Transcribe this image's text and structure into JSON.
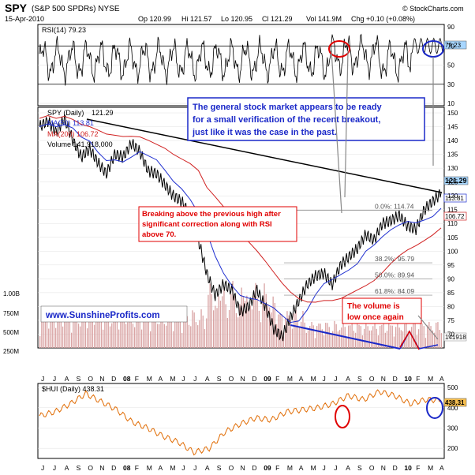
{
  "header": {
    "symbol": "SPY",
    "name": "(S&P 500 SPDRs) NYSE",
    "date": "15-Apr-2010",
    "open": "Op 120.99",
    "high": "Hi 121.57",
    "low": "Lo 120.95",
    "close": "Cl 121.29",
    "volume": "Vol 141.9M",
    "change": "Chg +0.10 (+0.08%)",
    "copyright": "© StockCharts.com"
  },
  "annotations": {
    "note1": [
      "The general stock market appears to be ready",
      "for a small verification of the recent breakout,",
      "just like it was the case in the past."
    ],
    "note2": [
      "Breaking above the previous high after",
      "significant correction along with RSI",
      "above 70."
    ],
    "note3": [
      "The volume is",
      "low once again"
    ],
    "website": "www.SunshineProfits.com"
  },
  "colors": {
    "price": "#000000",
    "ma50": "#1f2fd0",
    "ma200": "#d02020",
    "volume": "#d9a3a3",
    "hui": "#e06a00",
    "rsi": "#000000",
    "annotation_blue": "#1a28c8",
    "annotation_red": "#e00000",
    "grid": "#d8d8d8",
    "label_box": "#a7d6ff"
  },
  "chart_data": [
    {
      "type": "line",
      "title": "RSI(14) 79.23",
      "series": [
        {
          "name": "RSI(14)",
          "last": 79.23
        }
      ],
      "yticks": [
        10,
        30,
        50,
        70,
        90
      ],
      "ylim": [
        10,
        90
      ],
      "overbought": 70,
      "oversold": 30,
      "last_label": "79.23"
    },
    {
      "type": "line",
      "title": "SPY (Daily) 121.29",
      "series": [
        {
          "name": "SPY (Daily)",
          "last": 121.29,
          "values": [
            145,
            147,
            143,
            148,
            140,
            134,
            137,
            132,
            128,
            135,
            134,
            139,
            136,
            129,
            128,
            124,
            120,
            118,
            113,
            104,
            92,
            84,
            88,
            86,
            78,
            80,
            86,
            80,
            72,
            69,
            76,
            82,
            88,
            91,
            92,
            88,
            95,
            98,
            101,
            106,
            104,
            110,
            111,
            113,
            109,
            108,
            115,
            118,
            121
          ]
        },
        {
          "name": "MA(50)",
          "last": 113.81
        },
        {
          "name": "MA(200)",
          "last": 106.72
        },
        {
          "name": "Volume",
          "last": "141,918,000"
        }
      ],
      "yticks": [
        70,
        75,
        80,
        85,
        90,
        95,
        100,
        105,
        110,
        115,
        120,
        125,
        130,
        135,
        140,
        145,
        150
      ],
      "ylim": [
        65,
        152
      ],
      "volume_ticks": [
        "1.00B",
        "750M",
        "500M",
        "250M"
      ],
      "fibonacci": [
        {
          "label": "0.0%: 114.74",
          "value": 114.74
        },
        {
          "label": "38.2%: 95.79",
          "value": 95.79
        },
        {
          "label": "50.0%: 89.94",
          "value": 89.94
        },
        {
          "label": "61.8%: 84.09",
          "value": 84.09
        }
      ],
      "last_labels": {
        "price": "121.29",
        "ma50": "113.81",
        "ma200": "106.72",
        "volume": "141918"
      }
    },
    {
      "type": "line",
      "title": "$HUI (Daily) 438.31",
      "series": [
        {
          "name": "$HUI (Daily)",
          "last": 438.31,
          "values": [
            360,
            380,
            420,
            470,
            430,
            390,
            330,
            300,
            260,
            230,
            180,
            200,
            280,
            320,
            350,
            340,
            380,
            390,
            400,
            420,
            460,
            440,
            480,
            460,
            420,
            440,
            438
          ]
        }
      ],
      "yticks": [
        200,
        300,
        400,
        500
      ],
      "ylim": [
        150,
        520
      ],
      "last_label": "438.31"
    }
  ],
  "x_axis": {
    "labels": [
      "J",
      "J",
      "A",
      "S",
      "O",
      "N",
      "D",
      "08",
      "F",
      "M",
      "A",
      "M",
      "J",
      "J",
      "A",
      "S",
      "O",
      "N",
      "D",
      "09",
      "F",
      "M",
      "A",
      "M",
      "J",
      "J",
      "A",
      "S",
      "O",
      "N",
      "D",
      "10",
      "F",
      "M",
      "A"
    ],
    "year_labels": [
      "08",
      "09",
      "10"
    ]
  }
}
